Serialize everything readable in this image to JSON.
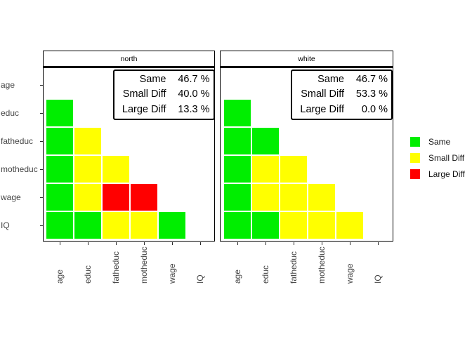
{
  "chart_data": {
    "type": "heatmap",
    "title": "",
    "x_categories": [
      "age",
      "educ",
      "fatheduc",
      "motheduc",
      "wage",
      "IQ"
    ],
    "y_categories": [
      "age",
      "educ",
      "fatheduc",
      "motheduc",
      "wage",
      "IQ"
    ],
    "value_levels": [
      "Same",
      "Small Diff",
      "Large Diff"
    ],
    "colors": {
      "Same": "#00ee00",
      "Small Diff": "#ffff00",
      "Large Diff": "#ff0000"
    },
    "layout_hints": {
      "facets": 2,
      "triangle": "lower",
      "legend_position": "right",
      "x_label_rotation": 90
    },
    "panels": [
      {
        "title": "north",
        "stats": [
          {
            "label": "Same",
            "value": "46.7 %"
          },
          {
            "label": "Small Diff",
            "value": "40.0 %"
          },
          {
            "label": "Large Diff",
            "value": "13.3 %"
          }
        ],
        "rows": [
          {
            "y": "educ",
            "cells": [
              "Same"
            ]
          },
          {
            "y": "fatheduc",
            "cells": [
              "Same",
              "Small Diff"
            ]
          },
          {
            "y": "motheduc",
            "cells": [
              "Same",
              "Small Diff",
              "Small Diff"
            ]
          },
          {
            "y": "wage",
            "cells": [
              "Same",
              "Small Diff",
              "Large Diff",
              "Large Diff"
            ]
          },
          {
            "y": "IQ",
            "cells": [
              "Same",
              "Same",
              "Small Diff",
              "Small Diff",
              "Same"
            ]
          }
        ]
      },
      {
        "title": "white",
        "stats": [
          {
            "label": "Same",
            "value": "46.7 %"
          },
          {
            "label": "Small Diff",
            "value": "53.3 %"
          },
          {
            "label": "Large Diff",
            "value": "0.0 %"
          }
        ],
        "rows": [
          {
            "y": "educ",
            "cells": [
              "Same"
            ]
          },
          {
            "y": "fatheduc",
            "cells": [
              "Same",
              "Same"
            ]
          },
          {
            "y": "motheduc",
            "cells": [
              "Same",
              "Small Diff",
              "Small Diff"
            ]
          },
          {
            "y": "wage",
            "cells": [
              "Same",
              "Small Diff",
              "Small Diff",
              "Small Diff"
            ]
          },
          {
            "y": "IQ",
            "cells": [
              "Same",
              "Same",
              "Small Diff",
              "Small Diff",
              "Small Diff"
            ]
          }
        ]
      }
    ],
    "legend": [
      {
        "label": "Same",
        "color": "#00ee00"
      },
      {
        "label": "Small Diff",
        "color": "#ffff00"
      },
      {
        "label": "Large Diff",
        "color": "#ff0000"
      }
    ]
  }
}
